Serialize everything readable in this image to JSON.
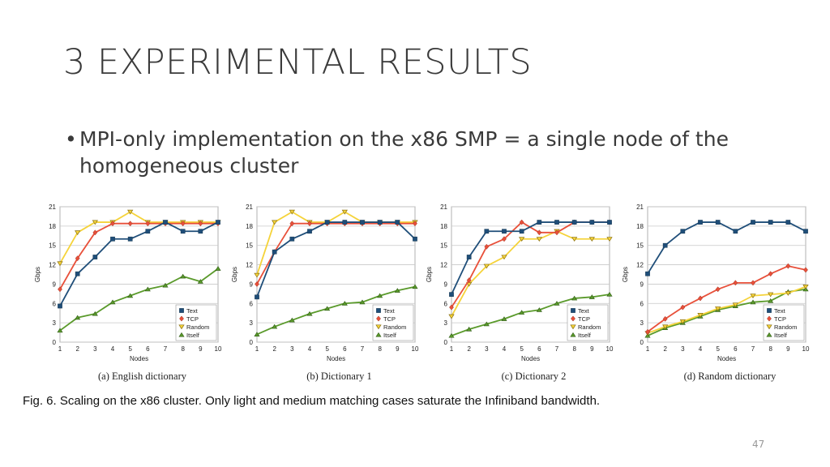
{
  "slide": {
    "title": "3 EXPERIMENTAL RESULTS",
    "bullet": "MPI-only implementation on the x86 SMP = a single node of the homogeneous cluster",
    "figure_caption": "Fig. 6. Scaling on the x86 cluster. Only light and medium matching cases saturate the Infiniband bandwidth.",
    "page_number": "47"
  },
  "colors": {
    "Text": "#1f4e79",
    "TCP": "#e8503a",
    "Random": "#f5d33a",
    "Itself": "#5a9a2b"
  },
  "chart_data": [
    {
      "type": "line",
      "caption": "(a) English dictionary",
      "xlabel": "Nodes",
      "ylabel": "Gbps",
      "x": [
        1,
        2,
        3,
        4,
        5,
        6,
        7,
        8,
        9,
        10
      ],
      "xlim": [
        1,
        10
      ],
      "ylim": [
        0,
        21
      ],
      "yticks": [
        0,
        3,
        6,
        9,
        12,
        15,
        18,
        21
      ],
      "grid": true,
      "legend": "bottom-right",
      "series": [
        {
          "name": "Text",
          "marker": "square",
          "values": [
            5.6,
            10.6,
            13.2,
            16.0,
            16.0,
            17.2,
            18.6,
            17.2,
            17.2,
            18.6
          ]
        },
        {
          "name": "TCP",
          "marker": "diamond",
          "values": [
            8.2,
            13.0,
            17.0,
            18.4,
            18.4,
            18.4,
            18.4,
            18.4,
            18.4,
            18.4
          ]
        },
        {
          "name": "Random",
          "marker": "triangle-down",
          "values": [
            12.2,
            17.0,
            18.6,
            18.6,
            20.2,
            18.6,
            18.6,
            18.6,
            18.6,
            18.6
          ]
        },
        {
          "name": "Itself",
          "marker": "triangle-up",
          "values": [
            1.8,
            3.8,
            4.4,
            6.2,
            7.2,
            8.2,
            8.8,
            10.2,
            9.4,
            11.4
          ]
        }
      ]
    },
    {
      "type": "line",
      "caption": "(b) Dictionary 1",
      "xlabel": "Nodes",
      "ylabel": "Gbps",
      "x": [
        1,
        2,
        3,
        4,
        5,
        6,
        7,
        8,
        9,
        10
      ],
      "xlim": [
        1,
        10
      ],
      "ylim": [
        0,
        21
      ],
      "yticks": [
        0,
        3,
        6,
        9,
        12,
        15,
        18,
        21
      ],
      "grid": true,
      "legend": "bottom-right",
      "series": [
        {
          "name": "Text",
          "marker": "square",
          "values": [
            7.0,
            14.0,
            16.0,
            17.2,
            18.6,
            18.6,
            18.6,
            18.6,
            18.6,
            16.0
          ]
        },
        {
          "name": "TCP",
          "marker": "diamond",
          "values": [
            9.0,
            14.0,
            18.4,
            18.4,
            18.4,
            18.4,
            18.4,
            18.4,
            18.4,
            18.4
          ]
        },
        {
          "name": "Random",
          "marker": "triangle-down",
          "values": [
            10.4,
            18.6,
            20.2,
            18.6,
            18.6,
            20.2,
            18.6,
            18.6,
            18.6,
            18.6
          ]
        },
        {
          "name": "Itself",
          "marker": "triangle-up",
          "values": [
            1.2,
            2.4,
            3.4,
            4.4,
            5.2,
            6.0,
            6.2,
            7.2,
            8.0,
            8.6
          ]
        }
      ]
    },
    {
      "type": "line",
      "caption": "(c) Dictionary 2",
      "xlabel": "Nodes",
      "ylabel": "Gbps",
      "x": [
        1,
        2,
        3,
        4,
        5,
        6,
        7,
        8,
        9,
        10
      ],
      "xlim": [
        1,
        10
      ],
      "ylim": [
        0,
        21
      ],
      "yticks": [
        0,
        3,
        6,
        9,
        12,
        15,
        18,
        21
      ],
      "grid": true,
      "legend": "bottom-right",
      "series": [
        {
          "name": "Text",
          "marker": "square",
          "values": [
            7.4,
            13.2,
            17.2,
            17.2,
            17.2,
            18.6,
            18.6,
            18.6,
            18.6,
            18.6
          ]
        },
        {
          "name": "TCP",
          "marker": "diamond",
          "values": [
            5.4,
            9.6,
            14.8,
            16.0,
            18.6,
            17.0,
            17.0,
            18.6,
            18.6,
            18.6
          ]
        },
        {
          "name": "Random",
          "marker": "triangle-down",
          "values": [
            4.0,
            9.0,
            11.8,
            13.2,
            16.0,
            16.0,
            17.2,
            16.0,
            16.0,
            16.0
          ]
        },
        {
          "name": "Itself",
          "marker": "triangle-up",
          "values": [
            1.0,
            2.0,
            2.8,
            3.6,
            4.6,
            5.0,
            6.0,
            6.8,
            7.0,
            7.4
          ]
        }
      ]
    },
    {
      "type": "line",
      "caption": "(d) Random dictionary",
      "xlabel": "Nodes",
      "ylabel": "Gbps",
      "x": [
        1,
        2,
        3,
        4,
        5,
        6,
        7,
        8,
        9,
        10
      ],
      "xlim": [
        1,
        10
      ],
      "ylim": [
        0,
        21
      ],
      "yticks": [
        0,
        3,
        6,
        9,
        12,
        15,
        18,
        21
      ],
      "grid": true,
      "legend": "bottom-right",
      "series": [
        {
          "name": "Text",
          "marker": "square",
          "values": [
            10.6,
            15.0,
            17.2,
            18.6,
            18.6,
            17.2,
            18.6,
            18.6,
            18.6,
            17.2
          ]
        },
        {
          "name": "TCP",
          "marker": "diamond",
          "values": [
            1.6,
            3.6,
            5.4,
            6.8,
            8.2,
            9.2,
            9.2,
            10.6,
            11.8,
            11.2
          ]
        },
        {
          "name": "Random",
          "marker": "triangle-down",
          "values": [
            1.4,
            2.4,
            3.2,
            4.2,
            5.2,
            5.8,
            7.2,
            7.4,
            7.6,
            8.6
          ]
        },
        {
          "name": "Itself",
          "marker": "triangle-up",
          "values": [
            1.0,
            2.2,
            3.0,
            4.0,
            5.0,
            5.6,
            6.2,
            6.4,
            7.8,
            8.2
          ]
        }
      ]
    }
  ]
}
